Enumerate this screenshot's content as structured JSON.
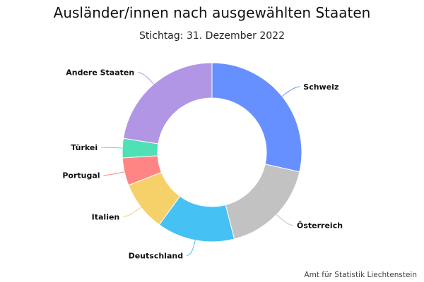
{
  "chart_data": {
    "type": "pie",
    "title": "Ausländer/innen nach ausgewählten Staaten",
    "subtitle": "Stichtag: 31. Dezember 2022",
    "credits": "Amt für Statistik Liechtenstein",
    "donut": true,
    "start_angle_deg": 0,
    "categories": [
      "Schweiz",
      "Österreich",
      "Deutschland",
      "Italien",
      "Portugal",
      "Türkei",
      "Andere Staaten"
    ],
    "values": [
      28.5,
      17.5,
      14.0,
      9.0,
      5.0,
      3.5,
      22.5
    ],
    "colors": [
      "#6690ff",
      "#c2c2c2",
      "#46c1f3",
      "#f6d16a",
      "#ff8585",
      "#4fe0b5",
      "#b196e6"
    ],
    "legend": "none"
  }
}
